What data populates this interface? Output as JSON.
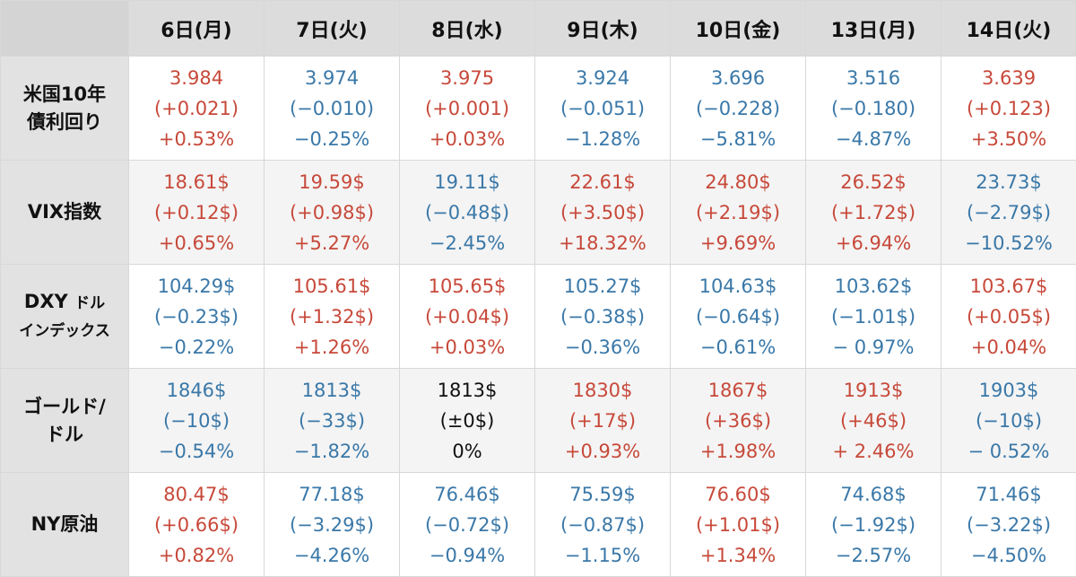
{
  "colors": {
    "up": "#c7493a",
    "down": "#3a78a8",
    "flat": "#111111",
    "header_bg": "#dcdcdc"
  },
  "header": {
    "days": [
      "6日(月)",
      "7日(火)",
      "8日(水)",
      "9日(木)",
      "10日(金)",
      "13日(月)",
      "14日(火)"
    ]
  },
  "rows": [
    {
      "label_line1": "米国10年",
      "label_line2": "債利回り",
      "cells": [
        {
          "value": "3.984",
          "change": "(+0.021)",
          "pct": "+0.53%",
          "trend": "up"
        },
        {
          "value": "3.974",
          "change": "(−0.010)",
          "pct": "−0.25%",
          "trend": "down"
        },
        {
          "value": "3.975",
          "change": "(+0.001)",
          "pct": "+0.03%",
          "trend": "up"
        },
        {
          "value": "3.924",
          "change": "(−0.051)",
          "pct": "−1.28%",
          "trend": "down"
        },
        {
          "value": "3.696",
          "change": "(−0.228)",
          "pct": "−5.81%",
          "trend": "down"
        },
        {
          "value": "3.516",
          "change": "(−0.180)",
          "pct": "−4.87%",
          "trend": "down"
        },
        {
          "value": "3.639",
          "change": "(+0.123)",
          "pct": "+3.50%",
          "trend": "up"
        }
      ]
    },
    {
      "label_line1": "VIX指数",
      "label_line2": "",
      "cells": [
        {
          "value": "18.61$",
          "change": "(+0.12$)",
          "pct": "+0.65%",
          "trend": "up"
        },
        {
          "value": "19.59$",
          "change": "(+0.98$)",
          "pct": "+5.27%",
          "trend": "up"
        },
        {
          "value": "19.11$",
          "change": "(−0.48$)",
          "pct": "−2.45%",
          "trend": "down"
        },
        {
          "value": "22.61$",
          "change": "(+3.50$)",
          "pct": "+18.32%",
          "trend": "up"
        },
        {
          "value": "24.80$",
          "change": "(+2.19$)",
          "pct": "+9.69%",
          "trend": "up"
        },
        {
          "value": "26.52$",
          "change": "(+1.72$)",
          "pct": "+6.94%",
          "trend": "up"
        },
        {
          "value": "23.73$",
          "change": "(−2.79$)",
          "pct": "−10.52%",
          "trend": "down"
        }
      ]
    },
    {
      "label_line1": "DXY",
      "label_line1_small": "ドル",
      "label_line2": "インデックス",
      "cells": [
        {
          "value": "104.29$",
          "change": "(−0.23$)",
          "pct": "−0.22%",
          "trend": "down"
        },
        {
          "value": "105.61$",
          "change": "(+1.32$)",
          "pct": "+1.26%",
          "trend": "up"
        },
        {
          "value": "105.65$",
          "change": "(+0.04$)",
          "pct": "+0.03%",
          "trend": "up"
        },
        {
          "value": "105.27$",
          "change": "(−0.38$)",
          "pct": "−0.36%",
          "trend": "down"
        },
        {
          "value": "104.63$",
          "change": "(−0.64$)",
          "pct": "−0.61%",
          "trend": "down"
        },
        {
          "value": "103.62$",
          "change": "(−1.01$)",
          "pct": "− 0.97%",
          "trend": "down"
        },
        {
          "value": "103.67$",
          "change": "(+0.05$)",
          "pct": "+0.04%",
          "trend": "up"
        }
      ]
    },
    {
      "label_line1": "ゴールド/",
      "label_line2": "ドル",
      "cells": [
        {
          "value": "1846$",
          "change": "(−10$)",
          "pct": "−0.54%",
          "trend": "down"
        },
        {
          "value": "1813$",
          "change": "(−33$)",
          "pct": "−1.82%",
          "trend": "down"
        },
        {
          "value": "1813$",
          "change": "(±0$)",
          "pct": "0%",
          "trend": "flat"
        },
        {
          "value": "1830$",
          "change": "(+17$)",
          "pct": "+0.93%",
          "trend": "up"
        },
        {
          "value": "1867$",
          "change": "(+36$)",
          "pct": "+1.98%",
          "trend": "up"
        },
        {
          "value": "1913$",
          "change": "(+46$)",
          "pct": "+ 2.46%",
          "trend": "up"
        },
        {
          "value": "1903$",
          "change": "(−10$)",
          "pct": "− 0.52%",
          "trend": "down"
        }
      ]
    },
    {
      "label_line1": "NY原油",
      "label_line2": "",
      "cells": [
        {
          "value": "80.47$",
          "change": "(+0.66$)",
          "pct": "+0.82%",
          "trend": "up"
        },
        {
          "value": "77.18$",
          "change": "(−3.29$)",
          "pct": "−4.26%",
          "trend": "down"
        },
        {
          "value": "76.46$",
          "change": "(−0.72$)",
          "pct": "−0.94%",
          "trend": "down"
        },
        {
          "value": "75.59$",
          "change": "(−0.87$)",
          "pct": "−1.15%",
          "trend": "down"
        },
        {
          "value": "76.60$",
          "change": "(+1.01$)",
          "pct": "+1.34%",
          "trend": "up"
        },
        {
          "value": "74.68$",
          "change": "(−1.92$)",
          "pct": "−2.57%",
          "trend": "down"
        },
        {
          "value": "71.46$",
          "change": "(−3.22$)",
          "pct": "−4.50%",
          "trend": "down"
        }
      ]
    }
  ]
}
